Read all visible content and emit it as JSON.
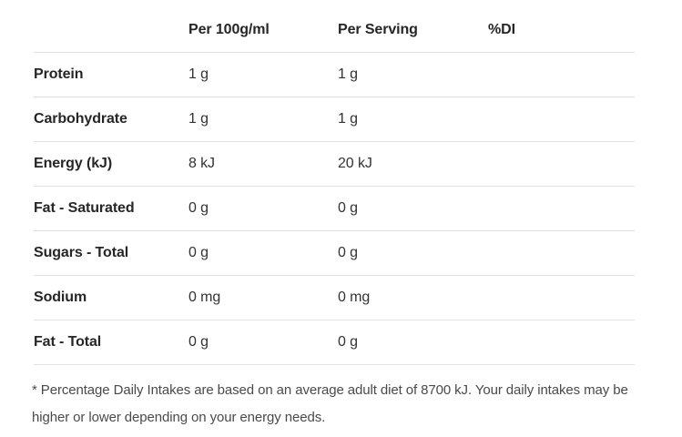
{
  "panel": {
    "headers": {
      "per100": "Per 100g/ml",
      "serving": "Per Serving",
      "di": "%DI"
    },
    "rows": [
      {
        "label": "Protein",
        "per100": "1 g",
        "serving": "1 g",
        "di": ""
      },
      {
        "label": "Carbohydrate",
        "per100": "1 g",
        "serving": "1 g",
        "di": ""
      },
      {
        "label": "Energy (kJ)",
        "per100": "8 kJ",
        "serving": "20 kJ",
        "di": ""
      },
      {
        "label": "Fat - Saturated",
        "per100": "0 g",
        "serving": "0 g",
        "di": ""
      },
      {
        "label": "Sugars - Total",
        "per100": "0 g",
        "serving": "0 g",
        "di": ""
      },
      {
        "label": "Sodium",
        "per100": "0 mg",
        "serving": "0 mg",
        "di": ""
      },
      {
        "label": "Fat - Total",
        "per100": "0 g",
        "serving": "0 g",
        "di": ""
      }
    ],
    "footnote": "* Percentage Daily Intakes are based on an average adult diet of 8700 kJ. Your daily intakes may be higher or lower depending on your energy needs.",
    "colors": {
      "border": "#dfdfdf",
      "heading_text": "#262626",
      "value_text": "#333333",
      "footnote_text": "#4a4a4a"
    }
  }
}
